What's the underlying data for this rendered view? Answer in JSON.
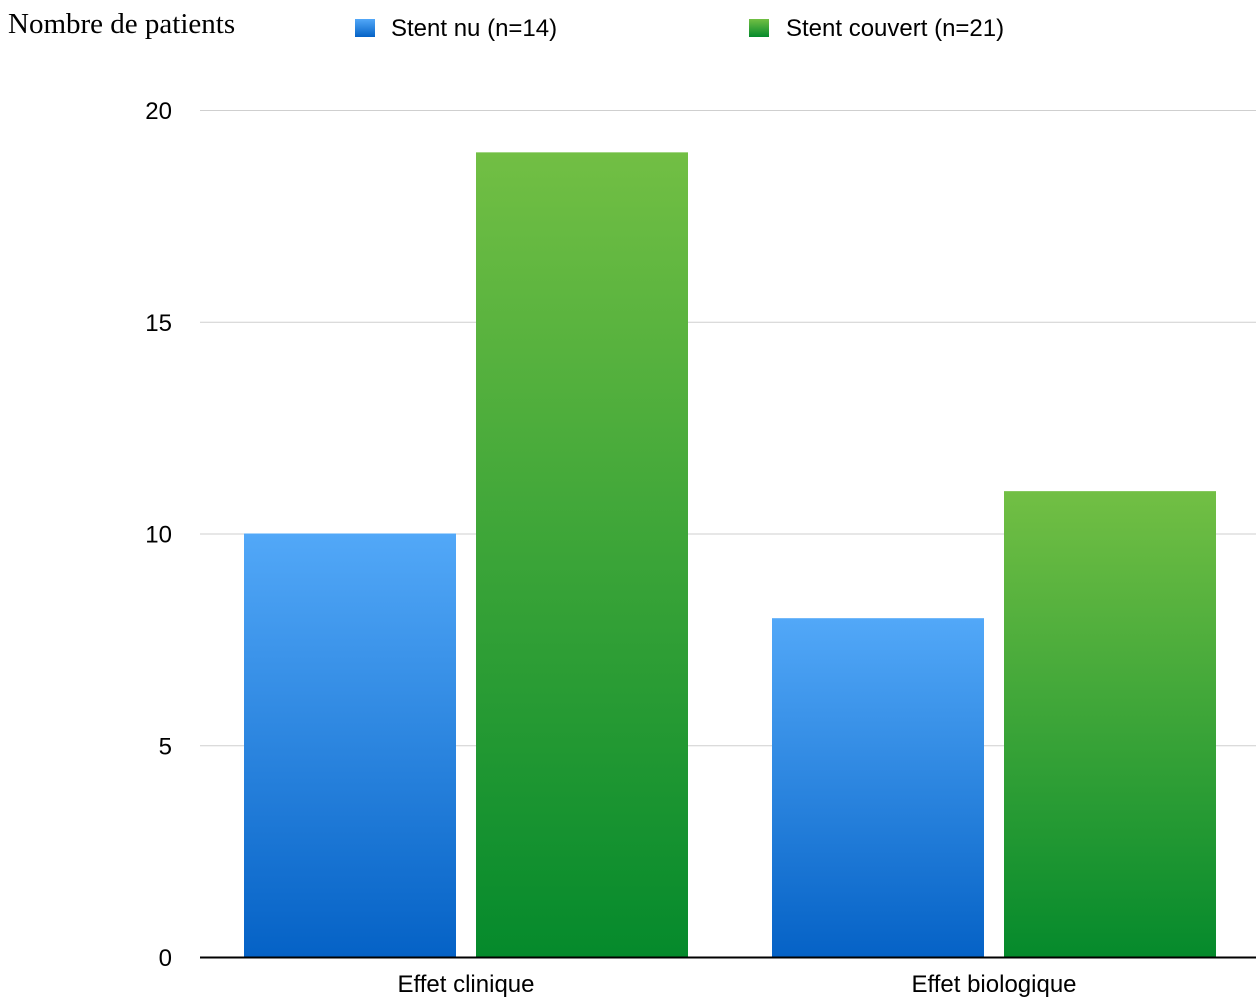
{
  "chart_data": {
    "type": "bar",
    "ylabel": "Nombre de patients",
    "xlabel": "",
    "categories": [
      "Effet clinique",
      "Effet biologique"
    ],
    "series": [
      {
        "name": "Stent nu (n=14)",
        "values": [
          10,
          8
        ],
        "color_top": "#52a8f8",
        "color_bottom": "#0562c6"
      },
      {
        "name": "Stent couvert (n=21)",
        "values": [
          19,
          11
        ],
        "color_top": "#72bf44",
        "color_bottom": "#058a2c"
      }
    ],
    "ylim": [
      0,
      20
    ],
    "yticks": [
      0,
      5,
      10,
      15,
      20
    ],
    "grid": true,
    "legend": "top"
  }
}
